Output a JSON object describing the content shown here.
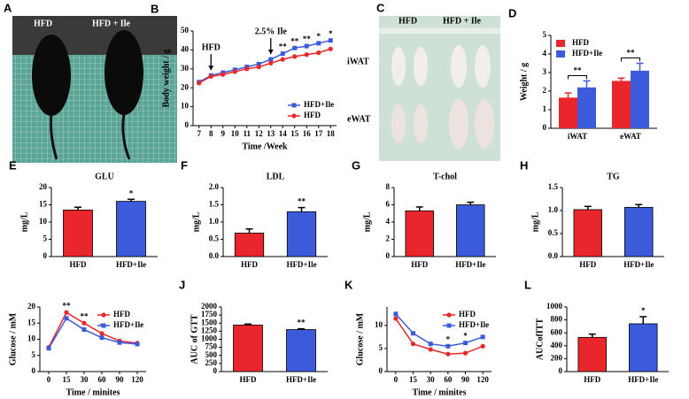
{
  "photos": [
    {
      "letter": "A",
      "labels": [
        "HFD",
        "HFD + Ile"
      ]
    },
    {
      "letter": "C",
      "labels": [
        "HFD",
        "HFD + Ile"
      ],
      "rows": [
        "iWAT",
        "eWAT"
      ]
    }
  ],
  "chart_data": [
    {
      "type": "line",
      "letter": "B",
      "xlabel": "Time /Week",
      "ylabel": "Body weight / g",
      "categories": [
        "7",
        "8",
        "9",
        "10",
        "11",
        "12",
        "13",
        "14",
        "15",
        "16",
        "17",
        "18"
      ],
      "ylim": [
        0,
        50
      ],
      "yticks": [
        0,
        10,
        20,
        30,
        40,
        50
      ],
      "legend": "lower right",
      "series": [
        {
          "name": "HFD+Ile",
          "color": "#3b5bdb",
          "marker": "square",
          "values": [
            23,
            26.5,
            28,
            29.5,
            31,
            32.5,
            35,
            38,
            41,
            42,
            43.5,
            45
          ]
        },
        {
          "name": "HFD",
          "color": "#e8262b",
          "marker": "circle",
          "values": [
            22.5,
            26,
            27,
            28.5,
            30,
            31,
            33,
            35,
            36.5,
            37.5,
            38.5,
            40.5
          ]
        }
      ],
      "significance": [
        null,
        null,
        null,
        null,
        null,
        null,
        null,
        "**",
        "**",
        "**",
        "*",
        "*"
      ],
      "annotations": [
        {
          "text": "HFD",
          "at": "8"
        },
        {
          "text": "2.5% Ile",
          "at": "13"
        }
      ]
    },
    {
      "type": "grouped_bar",
      "letter": "D",
      "ylabel": "Weight / g",
      "categories": [
        "iWAT",
        "eWAT"
      ],
      "ylim": [
        0,
        5
      ],
      "yticks": [
        0,
        1,
        2,
        3,
        4,
        5
      ],
      "legend": "upper left",
      "series": [
        {
          "name": "HFD",
          "color": "#e8262b",
          "values": [
            1.65,
            2.55
          ],
          "errors": [
            0.25,
            0.15
          ]
        },
        {
          "name": "HFD+Ile",
          "color": "#3b5bdb",
          "values": [
            2.2,
            3.1
          ],
          "errors": [
            0.35,
            0.4
          ]
        }
      ],
      "significance": [
        "**",
        "**"
      ]
    },
    {
      "type": "bar",
      "letter": "E",
      "title": "GLU",
      "ylabel": "mg/L",
      "categories": [
        "HFD",
        "HFD+Ile"
      ],
      "colors": [
        "#e8262b",
        "#3b5bdb"
      ],
      "values": [
        13.5,
        16
      ],
      "errors": [
        0.8,
        0.6
      ],
      "ylim": [
        0,
        20
      ],
      "yticks": [
        0,
        5,
        10,
        15,
        20
      ],
      "significance": [
        null,
        "*"
      ]
    },
    {
      "type": "bar",
      "letter": "F",
      "title": "LDL",
      "ylabel": "mg/L",
      "categories": [
        "HFD",
        "HFD+Ile"
      ],
      "colors": [
        "#e8262b",
        "#3b5bdb"
      ],
      "values": [
        0.68,
        1.3
      ],
      "errors": [
        0.12,
        0.12
      ],
      "ylim": [
        0,
        2
      ],
      "yticks": [
        {
          "value": 0,
          "label": "0.0"
        },
        0.5,
        {
          "value": 1,
          "label": "1.0"
        },
        1.5,
        {
          "value": 2,
          "label": "2.0"
        }
      ],
      "significance": [
        null,
        "**"
      ]
    },
    {
      "type": "bar",
      "letter": "G",
      "title": "T-chol",
      "ylabel": "mg/L",
      "categories": [
        "HFD",
        "HFD+Ile"
      ],
      "colors": [
        "#e8262b",
        "#3b5bdb"
      ],
      "values": [
        5.3,
        6.0
      ],
      "errors": [
        0.45,
        0.3
      ],
      "ylim": [
        0,
        8
      ],
      "yticks": [
        0,
        2,
        4,
        6,
        8
      ],
      "significance": [
        null,
        null
      ]
    },
    {
      "type": "bar",
      "letter": "H",
      "title": "TG",
      "ylabel": "mg/L",
      "categories": [
        "HFD",
        "HFD+Ile"
      ],
      "colors": [
        "#e8262b",
        "#3b5bdb"
      ],
      "values": [
        1.02,
        1.07
      ],
      "errors": [
        0.07,
        0.06
      ],
      "ylim": [
        0,
        1.5
      ],
      "yticks": [
        {
          "value": 0,
          "label": "0.0"
        },
        0.5,
        {
          "value": 1,
          "label": "1.0"
        },
        1.5
      ],
      "significance": [
        null,
        null
      ]
    },
    {
      "type": "line",
      "letter": "I",
      "xlabel": "Time / minites",
      "ylabel": "Glucose / mM",
      "categories": [
        "0",
        "15",
        "30",
        "60",
        "90",
        "120"
      ],
      "ylim": [
        0,
        20
      ],
      "yticks": [
        0,
        5,
        10,
        15,
        20
      ],
      "legend": "upper right",
      "series": [
        {
          "name": "HFD",
          "color": "#e8262b",
          "marker": "circle",
          "values": [
            7.5,
            18.3,
            15,
            11.8,
            9.5,
            8.8
          ]
        },
        {
          "name": "HFD+Ile",
          "color": "#3b5bdb",
          "marker": "square",
          "values": [
            7.2,
            16.5,
            13,
            10.5,
            9,
            8.5
          ]
        }
      ],
      "significance": [
        null,
        "**",
        "**",
        "*",
        null,
        null
      ]
    },
    {
      "type": "bar",
      "letter": "J",
      "ylabel": "AUC of GTT",
      "categories": [
        "HFD",
        "HFD+Ile"
      ],
      "colors": [
        "#e8262b",
        "#3b5bdb"
      ],
      "values": [
        1440,
        1300
      ],
      "errors": [
        30,
        25
      ],
      "ylim": [
        0,
        2000
      ],
      "yticks": [
        0,
        250,
        500,
        750,
        1000,
        1250,
        1500,
        1750,
        2000
      ],
      "significance": [
        null,
        "**"
      ]
    },
    {
      "type": "line",
      "letter": "K",
      "xlabel": "Time / minites",
      "ylabel": "Glucose / mM",
      "categories": [
        "0",
        "15",
        "30",
        "60",
        "90",
        "120"
      ],
      "ylim": [
        0,
        14
      ],
      "yticks": [
        0,
        5,
        10
      ],
      "legend": "upper right",
      "series": [
        {
          "name": "HFD",
          "color": "#e8262b",
          "marker": "circle",
          "values": [
            11.5,
            6,
            4.8,
            3.8,
            4,
            5.5
          ]
        },
        {
          "name": "HFD+Ile",
          "color": "#3b5bdb",
          "marker": "square",
          "values": [
            12.5,
            8.3,
            6,
            5.5,
            6.2,
            7.5
          ]
        }
      ],
      "significance": [
        null,
        null,
        null,
        "*",
        "*",
        null
      ]
    },
    {
      "type": "bar",
      "letter": "L",
      "ylabel": "AUCofITT",
      "categories": [
        "HFD",
        "HFD+Ile"
      ],
      "colors": [
        "#e8262b",
        "#3b5bdb"
      ],
      "values": [
        530,
        740
      ],
      "errors": [
        50,
        110
      ],
      "ylim": [
        0,
        1000
      ],
      "yticks": [
        0,
        200,
        400,
        600,
        800,
        1000
      ],
      "significance": [
        null,
        "*"
      ]
    }
  ]
}
